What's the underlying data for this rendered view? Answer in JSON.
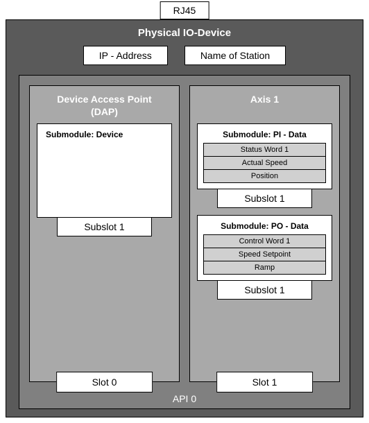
{
  "connector": {
    "label": "RJ45"
  },
  "device": {
    "title": "Physical IO-Device",
    "config": {
      "ip": "IP - Address",
      "station": "Name of Station"
    }
  },
  "api": {
    "label": "API 0",
    "slots": {
      "dap": {
        "title_l1": "Device Access Point",
        "title_l2": "(DAP)",
        "submodule": {
          "title": "Submodule: Device"
        },
        "subslot": "Subslot 1",
        "slot_label": "Slot 0"
      },
      "axis": {
        "title": "Axis 1",
        "pi": {
          "title": "Submodule: PI - Data",
          "rows": {
            "r0": "Status Word 1",
            "r1": "Actual Speed",
            "r2": "Position"
          }
        },
        "pi_subslot": "Subslot 1",
        "po": {
          "title": "Submodule: PO - Data",
          "rows": {
            "r0": "Control Word 1",
            "r1": "Speed Setpoint",
            "r2": "Ramp"
          }
        },
        "po_subslot": "Subslot 1",
        "slot_label": "Slot 1"
      }
    }
  }
}
